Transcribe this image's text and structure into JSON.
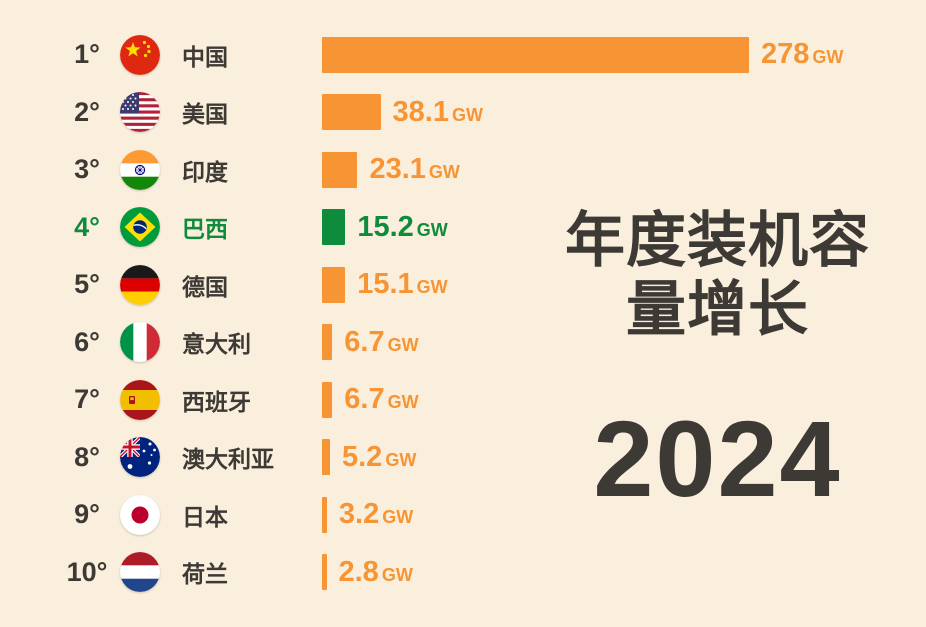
{
  "page": {
    "background": "#FAEEDC",
    "accent_orange": "#F79433",
    "accent_green": "#0F8B3C",
    "text_dark": "#3D3935"
  },
  "title": {
    "line1": "年度装机容",
    "line2": "量增长",
    "year": "2024"
  },
  "chart_data": {
    "type": "bar",
    "orientation": "horizontal",
    "title": "年度装机容量增长",
    "subtitle": "2024",
    "unit": "GW",
    "categories": [
      "中国",
      "美国",
      "印度",
      "巴西",
      "德国",
      "意大利",
      "西班牙",
      "澳大利亚",
      "日本",
      "荷兰"
    ],
    "values": [
      278,
      38.1,
      23.1,
      15.2,
      15.1,
      6.7,
      6.7,
      5.2,
      3.2,
      2.8
    ],
    "bar_color": "#F79433",
    "highlight_color": "#0F8B3C",
    "xlim": [
      0,
      278
    ],
    "rows": [
      {
        "rank": "1°",
        "country": "中国",
        "flag": "china",
        "value": 278,
        "value_display": "278",
        "highlight": false
      },
      {
        "rank": "2°",
        "country": "美国",
        "flag": "usa",
        "value": 38.1,
        "value_display": "38.1",
        "highlight": false
      },
      {
        "rank": "3°",
        "country": "印度",
        "flag": "india",
        "value": 23.1,
        "value_display": "23.1",
        "highlight": false
      },
      {
        "rank": "4°",
        "country": "巴西",
        "flag": "brazil",
        "value": 15.2,
        "value_display": "15.2",
        "highlight": true
      },
      {
        "rank": "5°",
        "country": "德国",
        "flag": "germany",
        "value": 15.1,
        "value_display": "15.1",
        "highlight": false
      },
      {
        "rank": "6°",
        "country": "意大利",
        "flag": "italy",
        "value": 6.7,
        "value_display": "6.7",
        "highlight": false
      },
      {
        "rank": "7°",
        "country": "西班牙",
        "flag": "spain",
        "value": 6.7,
        "value_display": "6.7",
        "highlight": false
      },
      {
        "rank": "8°",
        "country": "澳大利亚",
        "flag": "australia",
        "value": 5.2,
        "value_display": "5.2",
        "highlight": false
      },
      {
        "rank": "9°",
        "country": "日本",
        "flag": "japan",
        "value": 3.2,
        "value_display": "3.2",
        "highlight": false
      },
      {
        "rank": "10°",
        "country": "荷兰",
        "flag": "netherlands",
        "value": 2.8,
        "value_display": "2.8",
        "highlight": false
      }
    ]
  }
}
